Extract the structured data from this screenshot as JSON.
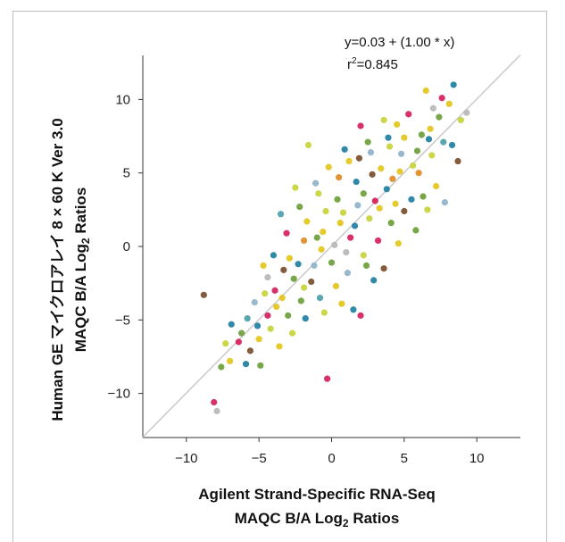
{
  "chart_data": {
    "type": "scatter",
    "xlabel_line1": "Agilent Strand-Specific RNA-Seq",
    "xlabel_line2": "MAQC B/A Log",
    "xlabel_sub": "2",
    "xlabel_tail": " Ratios",
    "ylabel_line1": "Human GE マイクロアレイ 8 × 60 K Ver 3.0",
    "ylabel_line2": "MAQC B/A Log",
    "ylabel_sub": "2",
    "ylabel_tail": " Ratios",
    "xlim": [
      -13,
      13
    ],
    "ylim": [
      -13,
      13
    ],
    "xticks": [
      -10,
      -5,
      0,
      5,
      10
    ],
    "yticks": [
      -10,
      -5,
      0,
      5,
      10
    ],
    "xtick_labels": [
      "−10",
      "−5",
      "0",
      "5",
      "10"
    ],
    "ytick_labels": [
      "−10",
      "−5",
      "0",
      "5",
      "10"
    ],
    "regression": {
      "intercept": 0.03,
      "slope": 1.0
    },
    "equation_text": "y=0.03 + (1.00 * x)",
    "r2_prefix": "r",
    "r2_sup": "2",
    "r2_value": "=0.845",
    "point_colors": [
      "#e3c51b",
      "#6d9f3b",
      "#1f7fa3",
      "#c8d23a",
      "#8fb3c9",
      "#d61e5b",
      "#7a4e2d",
      "#e08a24",
      "#4c9fa8",
      "#b7b7b7"
    ],
    "fit_line_color": "#c9c9c9",
    "points": [
      [
        8.4,
        11.0,
        2
      ],
      [
        9.3,
        9.1,
        9
      ],
      [
        8.9,
        8.6,
        3
      ],
      [
        7.6,
        10.1,
        5
      ],
      [
        8.7,
        5.8,
        6
      ],
      [
        7.7,
        7.1,
        8
      ],
      [
        6.8,
        8.0,
        0
      ],
      [
        6.2,
        7.6,
        1
      ],
      [
        5.6,
        5.5,
        3
      ],
      [
        4.8,
        6.3,
        4
      ],
      [
        4.2,
        4.6,
        7
      ],
      [
        3.4,
        5.3,
        0
      ],
      [
        3.0,
        3.1,
        5
      ],
      [
        2.2,
        3.6,
        1
      ],
      [
        1.6,
        1.4,
        2
      ],
      [
        0.8,
        2.3,
        3
      ],
      [
        0.2,
        0.1,
        9
      ],
      [
        -0.6,
        1.0,
        0
      ],
      [
        -1.2,
        -1.3,
        4
      ],
      [
        -1.9,
        0.4,
        7
      ],
      [
        -2.6,
        -2.2,
        1
      ],
      [
        -3.3,
        -1.6,
        6
      ],
      [
        -3.8,
        -4.1,
        0
      ],
      [
        -4.6,
        -3.2,
        3
      ],
      [
        -5.1,
        -5.4,
        2
      ],
      [
        -5.8,
        -4.9,
        8
      ],
      [
        -6.4,
        -6.5,
        5
      ],
      [
        -7.0,
        -7.8,
        0
      ],
      [
        -7.6,
        -8.2,
        1
      ],
      [
        -8.1,
        -10.6,
        5
      ],
      [
        -7.9,
        -11.2,
        9
      ],
      [
        -8.8,
        -3.3,
        6
      ],
      [
        -0.3,
        -9.0,
        5
      ],
      [
        -1.6,
        6.9,
        3
      ],
      [
        2.0,
        -4.7,
        5
      ],
      [
        1.5,
        -4.3,
        2
      ],
      [
        5.0,
        2.4,
        6
      ],
      [
        6.3,
        3.4,
        1
      ],
      [
        7.2,
        4.1,
        0
      ],
      [
        3.9,
        7.4,
        2
      ],
      [
        2.7,
        6.4,
        4
      ],
      [
        1.2,
        5.8,
        0
      ],
      [
        0.5,
        4.7,
        7
      ],
      [
        -0.9,
        3.6,
        3
      ],
      [
        -2.2,
        2.7,
        1
      ],
      [
        -3.1,
        0.9,
        5
      ],
      [
        -4.0,
        -0.6,
        2
      ],
      [
        -4.4,
        -2.1,
        9
      ],
      [
        -5.6,
        -7.1,
        6
      ],
      [
        -4.9,
        -8.1,
        1
      ],
      [
        -3.6,
        -6.8,
        0
      ],
      [
        -2.7,
        -5.9,
        3
      ],
      [
        -1.8,
        -4.9,
        2
      ],
      [
        -0.8,
        -3.5,
        8
      ],
      [
        0.3,
        -2.7,
        0
      ],
      [
        1.1,
        -1.8,
        4
      ],
      [
        2.2,
        -0.6,
        3
      ],
      [
        3.2,
        0.4,
        5
      ],
      [
        4.1,
        1.6,
        1
      ],
      [
        5.5,
        3.2,
        2
      ],
      [
        6.0,
        5.0,
        7
      ],
      [
        6.9,
        6.2,
        3
      ],
      [
        7.4,
        8.8,
        1
      ],
      [
        8.1,
        9.7,
        0
      ],
      [
        5.3,
        9.0,
        5
      ],
      [
        4.5,
        8.3,
        0
      ],
      [
        3.6,
        8.6,
        3
      ],
      [
        2.5,
        7.1,
        1
      ],
      [
        1.9,
        6.0,
        6
      ],
      [
        0.9,
        6.6,
        2
      ],
      [
        -0.2,
        5.4,
        0
      ],
      [
        -1.1,
        4.3,
        4
      ],
      [
        -2.5,
        4.0,
        3
      ],
      [
        -3.5,
        2.2,
        8
      ],
      [
        -2.9,
        -0.8,
        0
      ],
      [
        -1.4,
        -2.4,
        6
      ],
      [
        0.0,
        -1.1,
        1
      ],
      [
        1.3,
        0.6,
        5
      ],
      [
        2.6,
        1.9,
        3
      ],
      [
        3.8,
        3.9,
        2
      ],
      [
        4.7,
        5.1,
        0
      ],
      [
        -6.2,
        -5.9,
        1
      ],
      [
        -6.9,
        -5.3,
        2
      ],
      [
        -7.3,
        -6.6,
        3
      ],
      [
        -5.3,
        -3.8,
        4
      ],
      [
        -4.7,
        -1.3,
        0
      ],
      [
        -3.9,
        -3.0,
        5
      ],
      [
        -2.1,
        -3.7,
        1
      ],
      [
        -0.5,
        -4.5,
        3
      ],
      [
        0.7,
        -3.9,
        0
      ],
      [
        2.9,
        -2.3,
        2
      ],
      [
        3.6,
        -1.5,
        6
      ],
      [
        4.6,
        0.2,
        0
      ],
      [
        5.8,
        1.1,
        1
      ],
      [
        6.6,
        2.5,
        3
      ],
      [
        7.8,
        3.0,
        4
      ],
      [
        8.3,
        6.9,
        2
      ],
      [
        7.0,
        9.4,
        9
      ],
      [
        6.5,
        10.6,
        0
      ],
      [
        2.0,
        8.2,
        5
      ],
      [
        -1.7,
        1.7,
        0
      ],
      [
        -0.4,
        2.4,
        3
      ],
      [
        0.4,
        3.2,
        1
      ],
      [
        1.7,
        4.4,
        2
      ],
      [
        2.8,
        4.9,
        6
      ],
      [
        3.3,
        2.6,
        0
      ],
      [
        2.4,
        -1.3,
        1
      ],
      [
        1.0,
        -0.4,
        9
      ],
      [
        -0.7,
        -0.2,
        0
      ],
      [
        -2.3,
        -1.2,
        2
      ],
      [
        -3.0,
        -4.7,
        1
      ],
      [
        -4.2,
        -5.6,
        3
      ],
      [
        -5.0,
        -6.3,
        0
      ],
      [
        -5.9,
        -8.0,
        2
      ],
      [
        -4.4,
        -4.7,
        5
      ],
      [
        -3.4,
        -3.5,
        0
      ],
      [
        -1.9,
        -2.8,
        3
      ],
      [
        -1.0,
        0.6,
        1
      ],
      [
        0.6,
        1.6,
        0
      ],
      [
        1.8,
        2.8,
        4
      ],
      [
        4.0,
        6.8,
        3
      ],
      [
        5.0,
        7.4,
        0
      ],
      [
        5.9,
        6.5,
        1
      ],
      [
        6.7,
        7.3,
        2
      ],
      [
        4.4,
        2.9,
        0
      ]
    ]
  }
}
